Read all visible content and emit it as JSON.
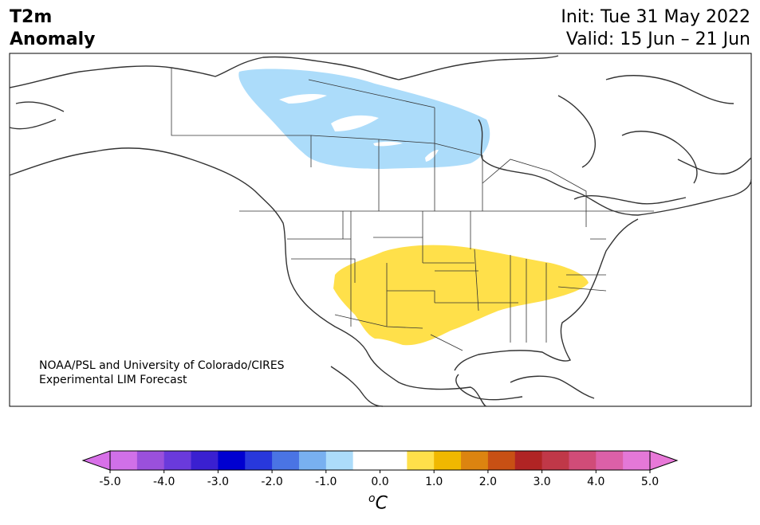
{
  "title": {
    "variable": "T2m",
    "quantity": "Anomaly"
  },
  "dates": {
    "init": "Init: Tue 31 May 2022",
    "valid": "Valid: 15 Jun – 21 Jun"
  },
  "credit": {
    "line1": "NOAA/PSL and University of Colorado/CIRES",
    "line2": "Experimental LIM Forecast"
  },
  "colorbar": {
    "ticks": [
      "-5.0",
      "-4.0",
      "-3.0",
      "-2.0",
      "-1.0",
      "0.0",
      "1.0",
      "2.0",
      "3.0",
      "4.0",
      "5.0"
    ],
    "units": "C",
    "units_superscript": "o",
    "colors": [
      "#d070e8",
      "#9a50dc",
      "#6a3adc",
      "#3a20d0",
      "#0000d0",
      "#2838dc",
      "#4a74e4",
      "#78b0f0",
      "#acdcfa",
      "#ffffff",
      "#ffffff",
      "#ffe04a",
      "#f0b800",
      "#dc8410",
      "#c85014",
      "#b02424",
      "#c03848",
      "#d04c78",
      "#dc60a8",
      "#e478d8"
    ],
    "under_color": "#d870e8",
    "over_color": "#e878d8"
  },
  "anomaly_regions": [
    {
      "name": "cold-canada",
      "value": -1.0,
      "color": "#acdcfa"
    },
    {
      "name": "warm-central-us",
      "value": 1.0,
      "color": "#ffe04a"
    }
  ]
}
